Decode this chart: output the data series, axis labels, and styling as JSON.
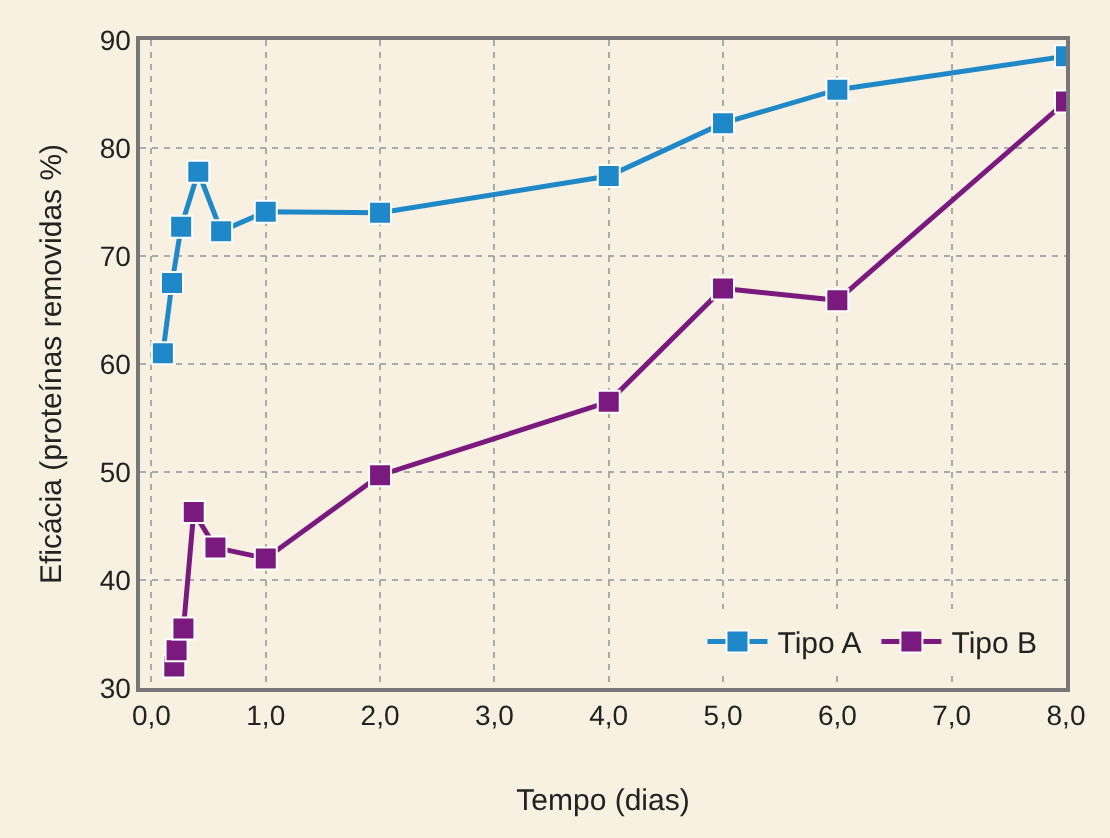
{
  "chart_data": {
    "type": "line",
    "xlabel": "Tempo (dias)",
    "ylabel": "Eficácia (proteínas removidas %)",
    "xlim": [
      -0.1,
      8
    ],
    "xticks": [
      {
        "value": 0,
        "label": "0,0"
      },
      {
        "value": 1,
        "label": "1,0"
      },
      {
        "value": 2,
        "label": "2,0"
      },
      {
        "value": 3,
        "label": "3,0"
      },
      {
        "value": 4,
        "label": "4,0"
      },
      {
        "value": 5,
        "label": "5,0"
      },
      {
        "value": 6,
        "label": "6,0"
      },
      {
        "value": 7,
        "label": "7,0"
      },
      {
        "value": 8,
        "label": "8,0"
      }
    ],
    "ylim": [
      30,
      90
    ],
    "yticks": [
      30,
      40,
      50,
      60,
      70,
      80,
      90
    ],
    "grid": true,
    "legend": "bottom right",
    "marker": "square",
    "line_style": "solid",
    "series": [
      {
        "name": "Tipo A",
        "color": "#1e88c8",
        "x": [
          0.1,
          0.18,
          0.26,
          0.41,
          0.61,
          1,
          2,
          4,
          5,
          6,
          8
        ],
        "values": [
          61,
          67.5,
          72.7,
          77.8,
          72.3,
          74.1,
          74,
          77.4,
          82.3,
          85.4,
          88.5
        ]
      },
      {
        "name": "Tipo B",
        "color": "#7b1a7e",
        "x": [
          0.2,
          0.22,
          0.28,
          0.37,
          0.56,
          1,
          2,
          4,
          5,
          6,
          8
        ],
        "values": [
          32,
          33.5,
          35.5,
          46.3,
          43,
          42,
          49.7,
          56.5,
          67,
          65.9,
          84.3
        ]
      }
    ]
  }
}
